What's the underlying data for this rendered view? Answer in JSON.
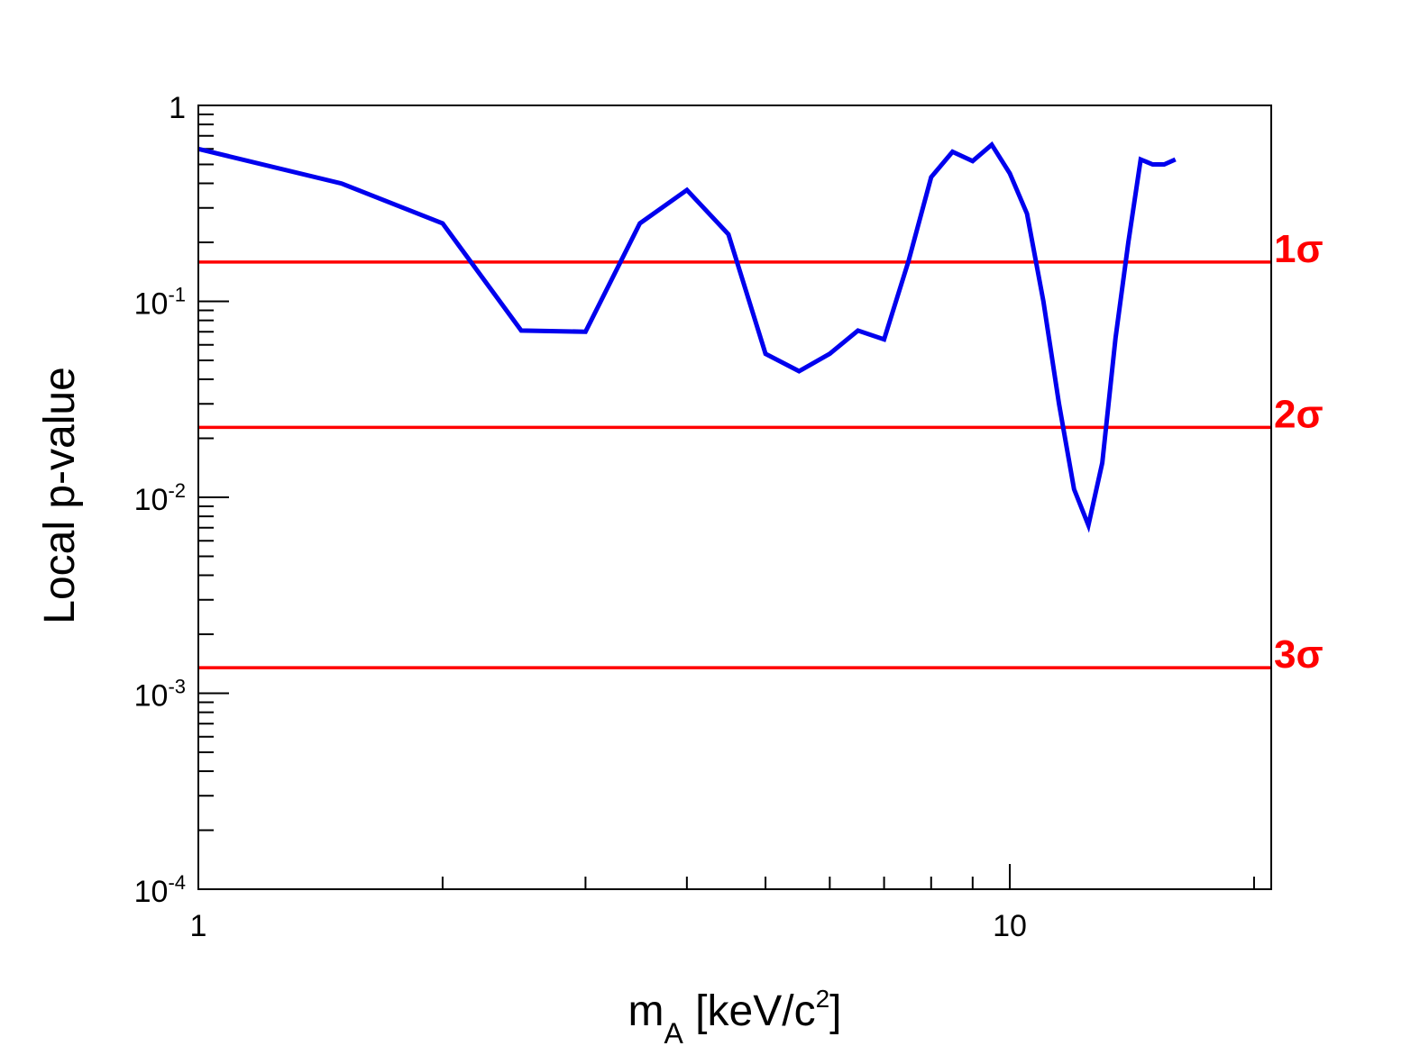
{
  "chart_data": {
    "type": "line",
    "xscale": "log",
    "yscale": "log",
    "xlim": [
      1,
      21
    ],
    "ylim": [
      0.0001,
      1
    ],
    "xlabel": {
      "main": "m",
      "sub": "A",
      "rest": " [keV/c",
      "sup": "2",
      "end": "]"
    },
    "ylabel": "Local p-value",
    "x_ticks": [
      {
        "value": 1,
        "label": "1"
      },
      {
        "value": 10,
        "label": "10"
      }
    ],
    "y_ticks": [
      {
        "value": 1,
        "base": "1",
        "exp": ""
      },
      {
        "value": 0.1,
        "base": "10",
        "exp": "-1"
      },
      {
        "value": 0.01,
        "base": "10",
        "exp": "-2"
      },
      {
        "value": 0.001,
        "base": "10",
        "exp": "-3"
      },
      {
        "value": 0.0001,
        "base": "10",
        "exp": "-4"
      }
    ],
    "colors": {
      "series": "#0000ee",
      "reference": "#ff0000",
      "axis": "#000000"
    },
    "series": [
      {
        "x": [
          1.0,
          1.5,
          2.0,
          2.5,
          3.0,
          3.5,
          4.0,
          4.5,
          5.0,
          5.5,
          6.0,
          6.5,
          7.0,
          7.5,
          8.0,
          8.5,
          9.0,
          9.5,
          10.0,
          10.5,
          11.0,
          11.5,
          12.0,
          12.5,
          13.0,
          13.5,
          14.0,
          14.5,
          15.0,
          15.5,
          16.0
        ],
        "y": [
          0.6,
          0.4,
          0.25,
          0.071,
          0.07,
          0.25,
          0.37,
          0.22,
          0.054,
          0.044,
          0.054,
          0.071,
          0.064,
          0.16,
          0.43,
          0.58,
          0.52,
          0.63,
          0.45,
          0.28,
          0.1,
          0.03,
          0.011,
          0.0072,
          0.015,
          0.065,
          0.2,
          0.53,
          0.5,
          0.5,
          0.53
        ]
      }
    ],
    "reference_lines": [
      {
        "y": 0.1587,
        "label": "1σ"
      },
      {
        "y": 0.02275,
        "label": "2σ"
      },
      {
        "y": 0.00135,
        "label": "3σ"
      }
    ]
  }
}
